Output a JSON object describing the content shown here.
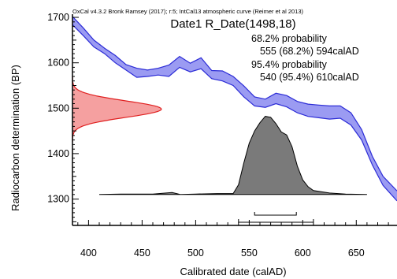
{
  "chart_data": {
    "type": "area",
    "source_note": "OxCal v4.3.2 Bronk Ramsey (2017); r:5; IntCal13 atmospheric curve (Reimer et al 2013)",
    "title": "Date1 R_Date(1498,18)",
    "annotations": {
      "p68_label": "68.2% probability",
      "p68_range": "555 (68.2%) 594calAD",
      "p95_label": "95.4% probability",
      "p95_range": "540 (95.4%) 610calAD"
    },
    "xlabel": "Calibrated date (calAD)",
    "ylabel": "Radiocarbon determination (BP)",
    "xlim": [
      385,
      688
    ],
    "ylim": [
      1242,
      1707
    ],
    "x_ticks": [
      400,
      450,
      500,
      550,
      600,
      650
    ],
    "x_tick_labels": [
      "400",
      "450",
      "500",
      "550",
      "600",
      "650"
    ],
    "y_ticks": [
      1300,
      1400,
      1500,
      1600,
      1700
    ],
    "y_tick_labels": [
      "1300",
      "1400",
      "1500",
      "1600",
      "1700"
    ],
    "calibration_curve": {
      "color": "#2b2bd6",
      "fill": "#9b9bf2",
      "x": [
        385,
        395,
        405,
        415,
        425,
        435,
        445,
        455,
        465,
        475,
        485,
        495,
        505,
        515,
        525,
        535,
        545,
        555,
        565,
        575,
        585,
        595,
        605,
        615,
        625,
        635,
        645,
        655,
        665,
        675,
        688
      ],
      "upper": [
        1702,
        1677,
        1650,
        1632,
        1616,
        1596,
        1588,
        1584,
        1588,
        1595,
        1614,
        1599,
        1611,
        1583,
        1582,
        1570,
        1549,
        1525,
        1520,
        1533,
        1528,
        1515,
        1509,
        1507,
        1505,
        1505,
        1490,
        1453,
        1394,
        1350,
        1318
      ],
      "lower": [
        1684,
        1660,
        1635,
        1620,
        1600,
        1584,
        1568,
        1570,
        1573,
        1570,
        1590,
        1580,
        1587,
        1565,
        1560,
        1550,
        1525,
        1505,
        1502,
        1510,
        1503,
        1490,
        1482,
        1479,
        1476,
        1478,
        1463,
        1430,
        1375,
        1330,
        1296
      ]
    },
    "radiocarbon_date": {
      "mean": 1498,
      "sd": 18,
      "peak_x": 468,
      "color": "#e02020",
      "fill": "#f5a0a0"
    },
    "calibrated_distribution": {
      "color": "#000000",
      "fill": "#7a7a7a",
      "baseline_y": 1310,
      "x": [
        410,
        430,
        460,
        478,
        486,
        500,
        520,
        535,
        540,
        545,
        550,
        555,
        560,
        565,
        570,
        575,
        580,
        585,
        590,
        595,
        600,
        605,
        610,
        625,
        640,
        660
      ],
      "amp": [
        0,
        1,
        1,
        4,
        0,
        1,
        2,
        2,
        20,
        65,
        105,
        130,
        147,
        160,
        158,
        145,
        128,
        122,
        98,
        58,
        30,
        16,
        8,
        3,
        1,
        0
      ]
    },
    "range_68": {
      "from": 555,
      "to": 594
    },
    "range_95": {
      "from": 540,
      "to": 610
    }
  }
}
